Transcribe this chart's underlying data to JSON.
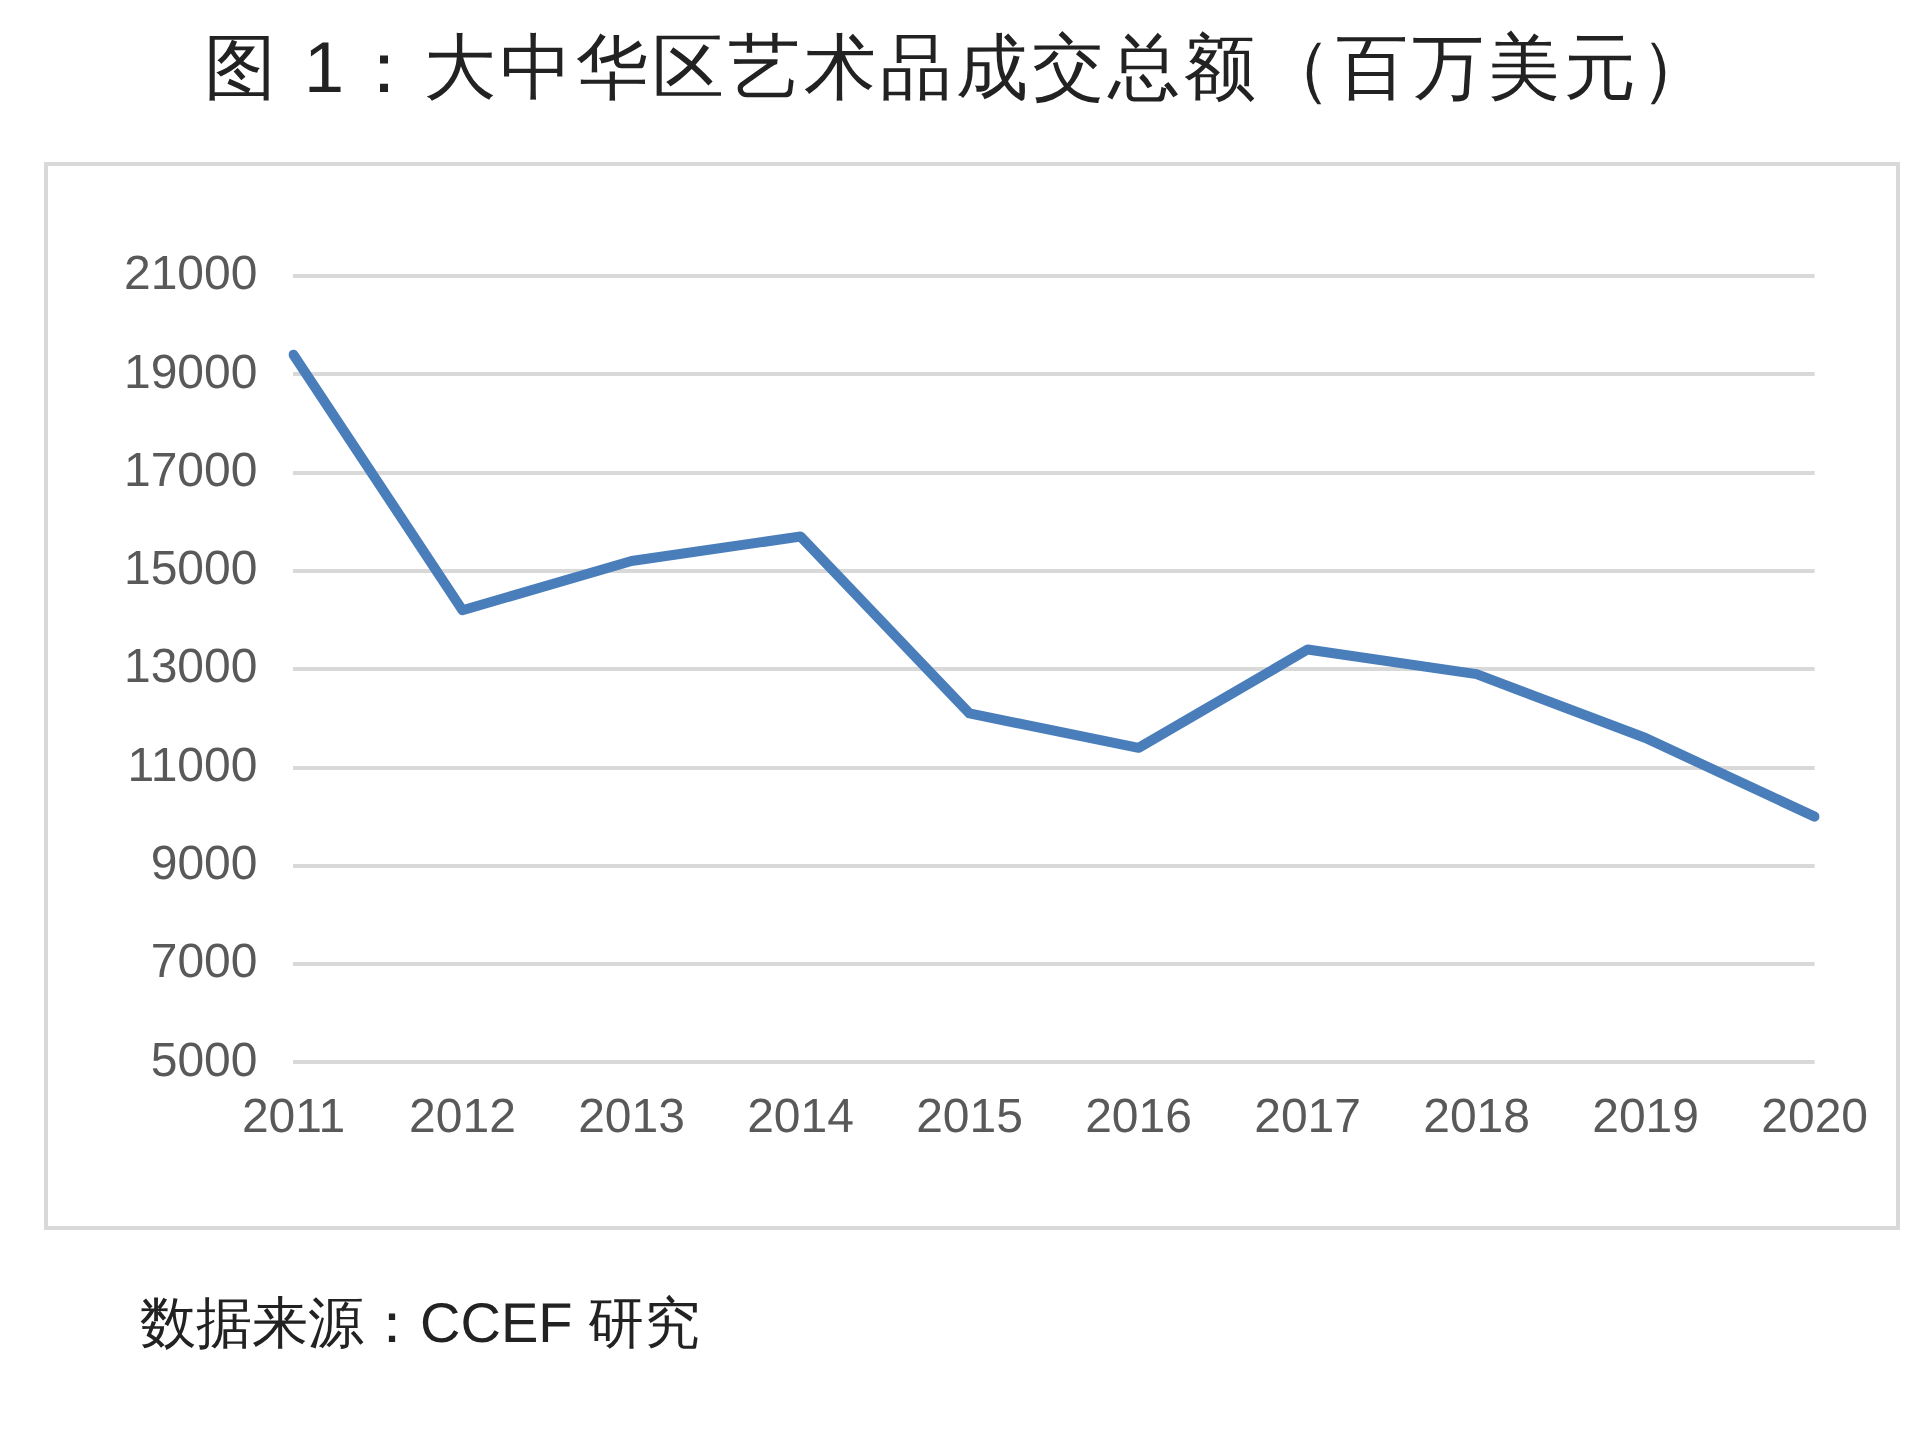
{
  "chart_data": {
    "type": "line",
    "title": "图 1：大中华区艺术品成交总额（百万美元）",
    "categories": [
      "2011",
      "2012",
      "2013",
      "2014",
      "2015",
      "2016",
      "2017",
      "2018",
      "2019",
      "2020"
    ],
    "series": [
      {
        "color": "#4a7ebb",
        "values": [
          19400,
          14200,
          15200,
          15700,
          12100,
          11400,
          13400,
          12900,
          11600,
          10000
        ]
      }
    ],
    "ylim": [
      5000,
      21000
    ],
    "yticks": [
      5000,
      7000,
      9000,
      11000,
      13000,
      15000,
      17000,
      19000,
      21000
    ],
    "grid": "y",
    "legend": false,
    "marker": "none",
    "line_style": "solid",
    "annotations": [
      "数据来源：CCEF 研究"
    ]
  }
}
